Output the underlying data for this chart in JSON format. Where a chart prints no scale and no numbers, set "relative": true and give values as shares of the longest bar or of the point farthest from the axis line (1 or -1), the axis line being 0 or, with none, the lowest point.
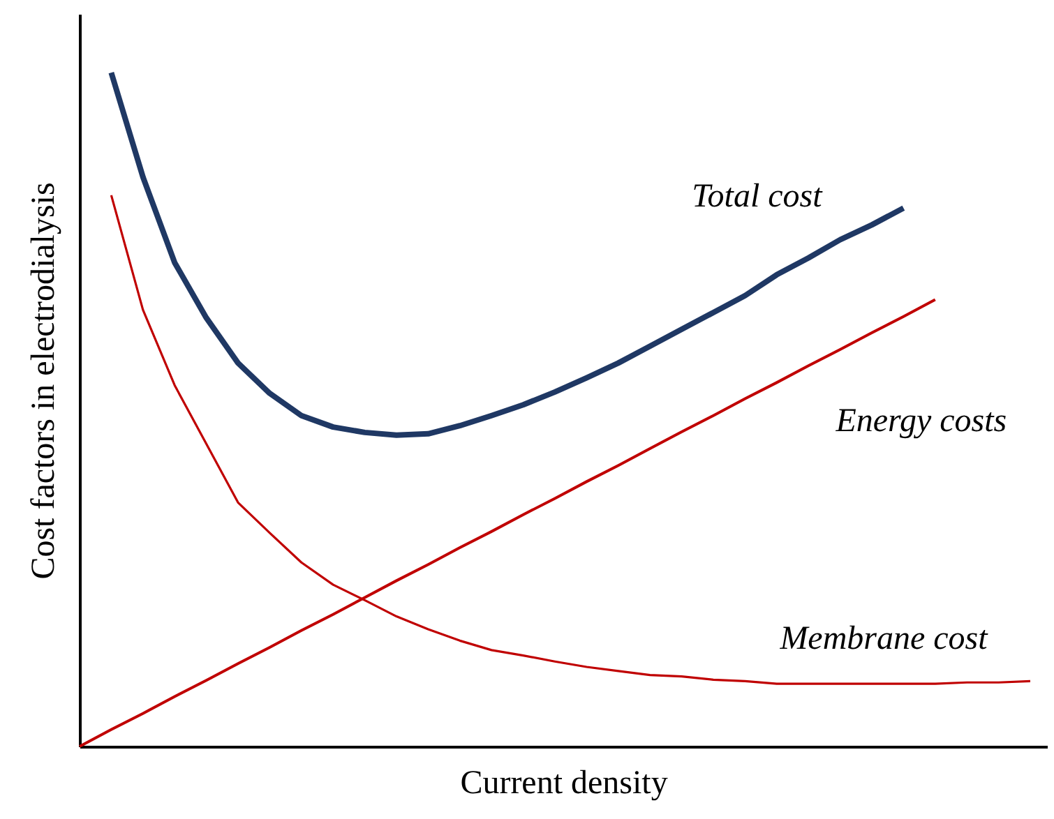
{
  "chart_data": {
    "type": "line",
    "relative": true,
    "xlabel": "Current density",
    "ylabel": "Cost factors in electrodialysis",
    "grid": false,
    "marker": "none",
    "line_style": "solid",
    "categories": [
      null,
      null,
      null,
      null,
      null,
      null,
      null,
      null,
      null,
      null,
      null,
      null,
      null,
      null,
      null,
      null,
      null,
      null,
      null,
      null,
      null,
      null,
      null,
      null,
      null,
      null,
      null,
      null,
      null,
      null,
      null
    ],
    "series": [
      {
        "name": "Total cost",
        "color": "#1f3864",
        "values": [
          null,
          1,
          0.845,
          0.718,
          0.636,
          0.569,
          0.524,
          0.491,
          0.474,
          0.466,
          0.462,
          0.464,
          0.476,
          0.491,
          0.507,
          0.526,
          0.547,
          0.569,
          0.594,
          0.619,
          0.644,
          0.669,
          0.7,
          0.725,
          0.752,
          0.774,
          0.799,
          null,
          null,
          null,
          null
        ]
      },
      {
        "name": "Energy costs",
        "color": "#c00000",
        "values": [
          0,
          0.025,
          0.049,
          0.074,
          0.098,
          0.123,
          0.147,
          0.172,
          0.196,
          0.221,
          0.246,
          0.27,
          0.295,
          0.319,
          0.344,
          0.368,
          0.393,
          0.417,
          0.442,
          0.467,
          0.491,
          0.516,
          0.54,
          0.565,
          0.589,
          0.614,
          0.638,
          0.663,
          null,
          null,
          null
        ]
      },
      {
        "name": "Membrane cost",
        "color": "#c00000",
        "values": [
          null,
          0.818,
          0.648,
          0.536,
          0.449,
          0.362,
          0.317,
          0.273,
          0.24,
          0.217,
          0.193,
          0.174,
          0.157,
          0.143,
          0.135,
          0.126,
          0.118,
          0.112,
          0.106,
          0.104,
          0.099,
          0.097,
          0.093,
          0.093,
          0.093,
          0.093,
          0.093,
          0.093,
          0.095,
          0.095,
          0.097
        ]
      }
    ]
  }
}
